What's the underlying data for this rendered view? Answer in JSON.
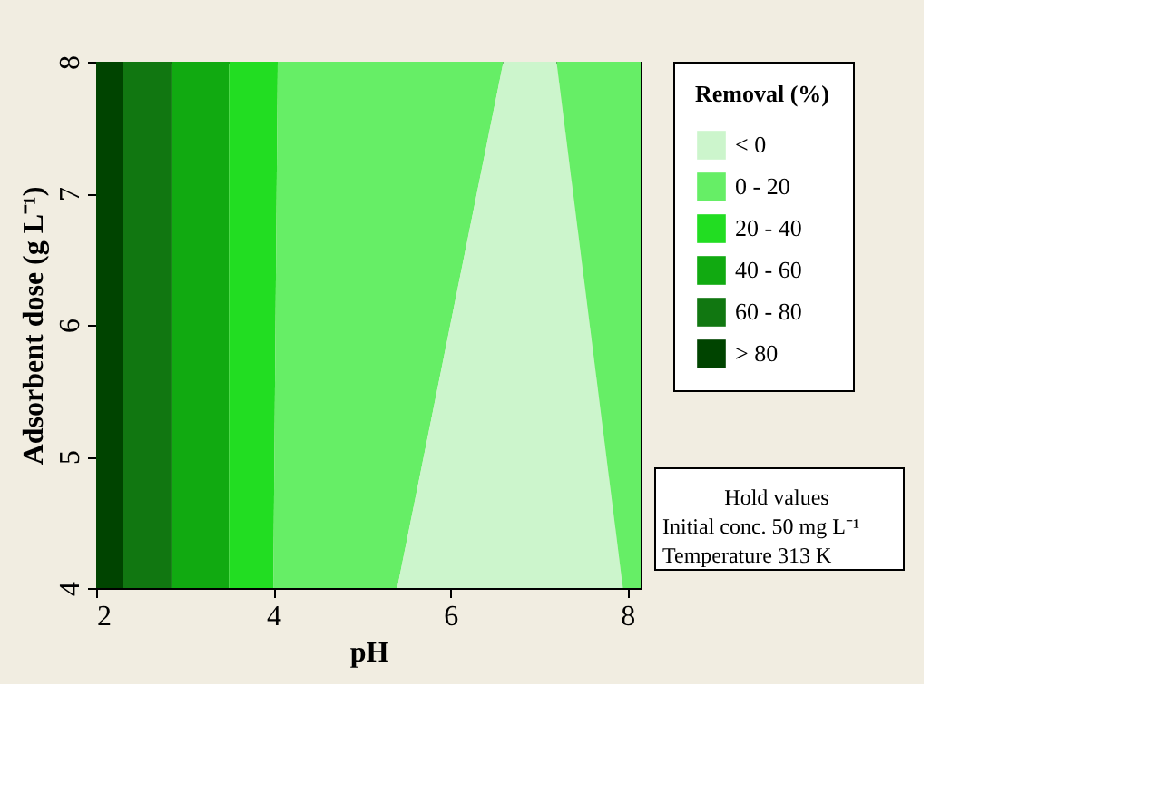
{
  "chart_data": {
    "type": "area",
    "orientation": "horizontal",
    "xlabel": "pH",
    "ylabel": "Adsorbent dose (g L⁻¹)",
    "legend_title": "Removal (%)",
    "x": [
      4,
      8
    ],
    "series": [
      {
        "name": "> 80",
        "color": "#004400",
        "values": [
          2.3,
          2.3
        ]
      },
      {
        "name": "60 - 80",
        "color": "#117711",
        "values": [
          2.85,
          2.85
        ]
      },
      {
        "name": "40 - 60",
        "color": "#11aa11",
        "values": [
          3.5,
          3.5
        ]
      },
      {
        "name": "20 - 40",
        "color": "#22dd22",
        "values": [
          4.0,
          4.05
        ]
      },
      {
        "name": "0 - 20",
        "color": "#66ee66",
        "values": [
          5.4,
          6.6
        ]
      },
      {
        "name": "< 0",
        "color": "#ccf5cc",
        "values": [
          7.95,
          7.2
        ]
      },
      {
        "color": "#66ee66",
        "values": [
          8.15,
          8.15
        ]
      }
    ],
    "xlim": [
      2,
      8.15
    ],
    "xticks": [
      2,
      4,
      6,
      8
    ],
    "ylim": [
      4,
      8
    ],
    "yticks": [
      4,
      5,
      6,
      7,
      8
    ],
    "grid": false,
    "legend": "right",
    "annotations": [
      "Hold values",
      "Initial conc.   50 mg L⁻¹",
      "Temperature   313 K"
    ]
  }
}
